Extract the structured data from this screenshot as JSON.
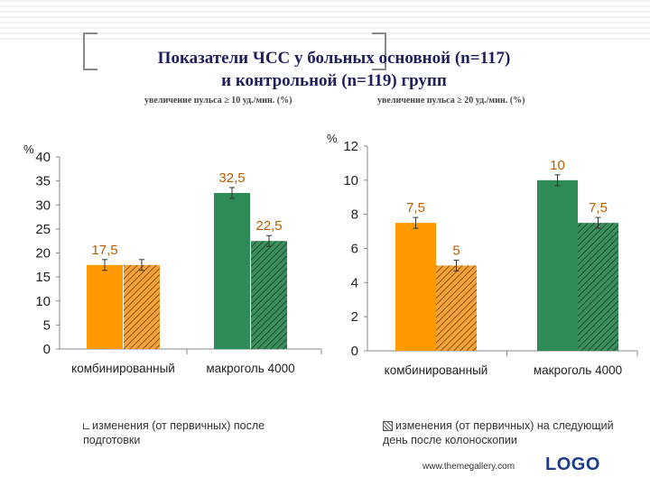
{
  "title_line1": "Показатели ЧСС у больных основной (n=117)",
  "title_line2": "и контрольной (n=119) групп",
  "footer": {
    "url": "www.themegallery.com",
    "logo": "LOGO"
  },
  "colors": {
    "series1": "#ff9900",
    "series2": "#2e8b57",
    "axis": "#888888",
    "label": "#b85c00"
  },
  "chart_data": [
    {
      "type": "bar",
      "subtitle": "увеличение пульса ≥ 10 уд./мин. (%)",
      "ylabel": "%",
      "ylim": [
        0,
        40
      ],
      "yticks": [
        "0",
        "5",
        "10",
        "15",
        "20",
        "25",
        "30",
        "35",
        "40"
      ],
      "categories": [
        "комбинированный",
        "макроголь 4000"
      ],
      "bars": [
        {
          "category": 0,
          "fill": "orange",
          "value": 17.5,
          "label": "17,5"
        },
        {
          "category": 0,
          "fill": "orange-hatch",
          "value": 17.5,
          "label": ""
        },
        {
          "category": 1,
          "fill": "green",
          "value": 32.5,
          "label": "32,5"
        },
        {
          "category": 1,
          "fill": "green-hatch",
          "value": 22.5,
          "label": "22,5"
        }
      ],
      "legend": "изменения (от первичных) после подготовки"
    },
    {
      "type": "bar",
      "subtitle": "увеличение пульса ≥ 20 уд./мин. (%)",
      "ylabel": "%",
      "ylim": [
        0,
        12
      ],
      "yticks": [
        "0",
        "2",
        "4",
        "6",
        "8",
        "10",
        "12"
      ],
      "categories": [
        "комбинированный",
        "макроголь 4000"
      ],
      "bars": [
        {
          "category": 0,
          "fill": "orange",
          "value": 7.5,
          "label": "7,5"
        },
        {
          "category": 0,
          "fill": "orange-hatch",
          "value": 5,
          "label": "5"
        },
        {
          "category": 1,
          "fill": "green",
          "value": 10,
          "label": "10"
        },
        {
          "category": 1,
          "fill": "green-hatch",
          "value": 7.5,
          "label": "7,5"
        }
      ],
      "legend": "изменения (от первичных) на следующий день после колоноскопии"
    }
  ]
}
